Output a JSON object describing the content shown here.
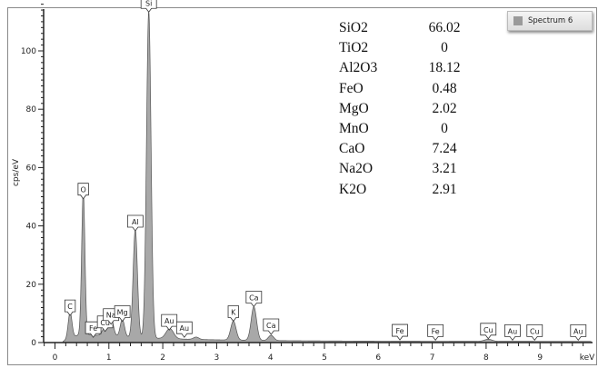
{
  "chart_data": {
    "type": "area",
    "xlabel": "keV",
    "ylabel": "cps/eV",
    "xlim": [
      -0.2,
      10.0
    ],
    "ylim": [
      0,
      116
    ],
    "x_ticks": [
      0,
      1,
      2,
      3,
      4,
      5,
      6,
      7,
      8,
      9
    ],
    "y_ticks": [
      0,
      20,
      40,
      60,
      80,
      100
    ],
    "grid": false,
    "legend": {
      "position": "top-right",
      "entries": [
        "Spectrum 6"
      ]
    },
    "fill_color": "#a8a8a8",
    "line_color": "#555555",
    "peaks": [
      {
        "energy": 0.28,
        "height": 9,
        "width": 0.035
      },
      {
        "energy": 0.525,
        "height": 49,
        "width": 0.03
      },
      {
        "energy": 0.93,
        "height": 3,
        "width": 0.05
      },
      {
        "energy": 1.04,
        "height": 6,
        "width": 0.045
      },
      {
        "energy": 1.25,
        "height": 6,
        "width": 0.04
      },
      {
        "energy": 1.49,
        "height": 37,
        "width": 0.04
      },
      {
        "energy": 1.74,
        "height": 112,
        "width": 0.042
      },
      {
        "energy": 2.13,
        "height": 3.5,
        "width": 0.07
      },
      {
        "energy": 2.62,
        "height": 0.8,
        "width": 0.05
      },
      {
        "energy": 3.31,
        "height": 6.5,
        "width": 0.05
      },
      {
        "energy": 3.69,
        "height": 11.5,
        "width": 0.05
      },
      {
        "energy": 4.01,
        "height": 1.8,
        "width": 0.05
      },
      {
        "energy": 8.04,
        "height": 0.7,
        "width": 0.07
      }
    ],
    "element_labels": [
      {
        "text": "C",
        "energy": 0.28,
        "y": 9
      },
      {
        "text": "O",
        "energy": 0.525,
        "y": 49
      },
      {
        "text": "Fe",
        "energy": 0.71,
        "y": 1.5
      },
      {
        "text": "Cu",
        "energy": 0.93,
        "y": 3.5
      },
      {
        "text": "Na",
        "energy": 1.04,
        "y": 6
      },
      {
        "text": "Mg",
        "energy": 1.25,
        "y": 7
      },
      {
        "text": "Al",
        "energy": 1.49,
        "y": 38
      },
      {
        "text": "Si",
        "energy": 1.74,
        "y": 113
      },
      {
        "text": "Au",
        "energy": 2.12,
        "y": 4
      },
      {
        "text": "Au",
        "energy": 2.4,
        "y": 1.5
      },
      {
        "text": "K",
        "energy": 3.31,
        "y": 7
      },
      {
        "text": "Ca",
        "energy": 3.69,
        "y": 12
      },
      {
        "text": "Ca",
        "energy": 4.01,
        "y": 2.5
      },
      {
        "text": "Fe",
        "energy": 6.4,
        "y": 0.6
      },
      {
        "text": "Fe",
        "energy": 7.06,
        "y": 0.5
      },
      {
        "text": "Cu",
        "energy": 8.04,
        "y": 1
      },
      {
        "text": "Au",
        "energy": 8.49,
        "y": 0.5
      },
      {
        "text": "Cu",
        "energy": 8.9,
        "y": 0.5
      },
      {
        "text": "Au",
        "energy": 9.71,
        "y": 0.5
      }
    ],
    "composition": [
      {
        "name": "SiO2",
        "value": "66.02"
      },
      {
        "name": "TiO2",
        "value": "0"
      },
      {
        "name": "Al2O3",
        "value": "18.12"
      },
      {
        "name": "FeO",
        "value": "0.48"
      },
      {
        "name": "MgO",
        "value": "2.02"
      },
      {
        "name": "MnO",
        "value": "0"
      },
      {
        "name": "CaO",
        "value": "7.24"
      },
      {
        "name": "Na2O",
        "value": "3.21"
      },
      {
        "name": "K2O",
        "value": "2.91"
      }
    ]
  }
}
